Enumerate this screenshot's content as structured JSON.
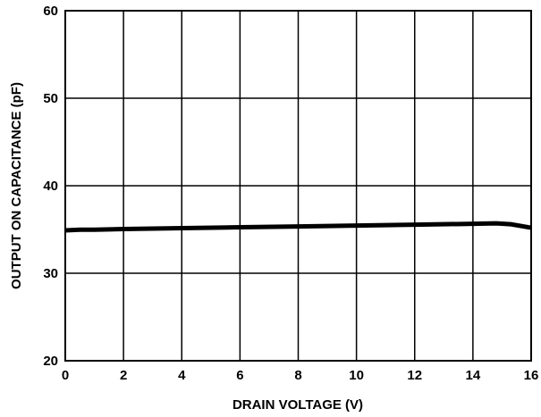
{
  "chart_data": {
    "type": "line",
    "title": "",
    "xlabel": "DRAIN VOLTAGE (V)",
    "ylabel": "OUTPUT ON CAPACITANCE (pF)",
    "xlim": [
      0,
      16
    ],
    "ylim": [
      20,
      60
    ],
    "xticks": [
      0,
      2,
      4,
      6,
      8,
      10,
      12,
      14,
      16
    ],
    "yticks": [
      20,
      30,
      40,
      50,
      60
    ],
    "grid": true,
    "legend": "none",
    "series": [
      {
        "color": "#000000",
        "x": [
          0,
          0.5,
          1,
          2,
          4,
          6,
          8,
          10,
          12,
          14,
          14.8,
          15.3,
          16
        ],
        "y": [
          34.9,
          34.98,
          34.98,
          35.05,
          35.15,
          35.25,
          35.35,
          35.45,
          35.55,
          35.65,
          35.7,
          35.6,
          35.2
        ]
      }
    ]
  }
}
